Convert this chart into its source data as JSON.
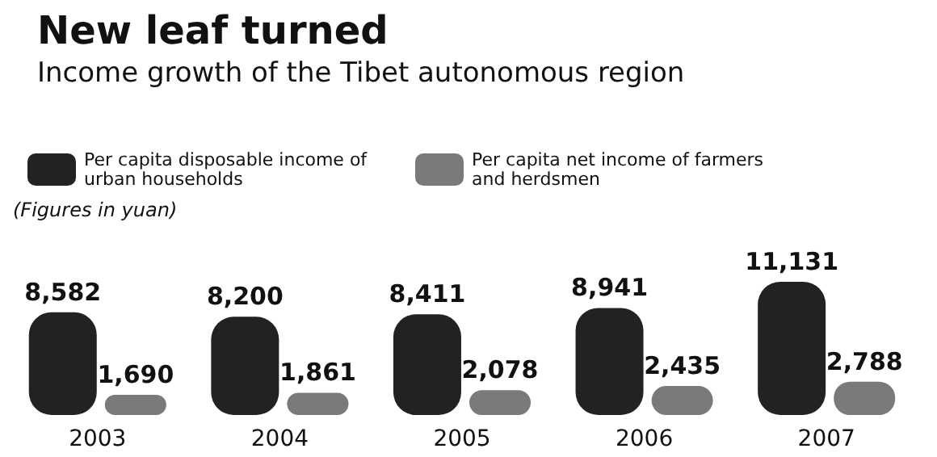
{
  "chart_data": {
    "type": "bar",
    "title": "New leaf turned",
    "subtitle": "Income growth of the Tibet autonomous region",
    "annotations": [
      "(Figures in yuan)"
    ],
    "categories": [
      "2003",
      "2004",
      "2005",
      "2006",
      "2007"
    ],
    "series": [
      {
        "name": "Per capita disposable income of urban households",
        "color": "#222222",
        "values": [
          8582,
          8200,
          8411,
          8941,
          11131
        ],
        "value_labels": [
          "8,582",
          "8,200",
          "8,411",
          "8,941",
          "11,131"
        ]
      },
      {
        "name": "Per capita net income of farmers and herdsmen",
        "color": "#7a7a7a",
        "values": [
          1690,
          1861,
          2078,
          2435,
          2788
        ],
        "value_labels": [
          "1,690",
          "1,861",
          "2,078",
          "2,435",
          "2,788"
        ]
      }
    ],
    "legend": "top left"
  }
}
